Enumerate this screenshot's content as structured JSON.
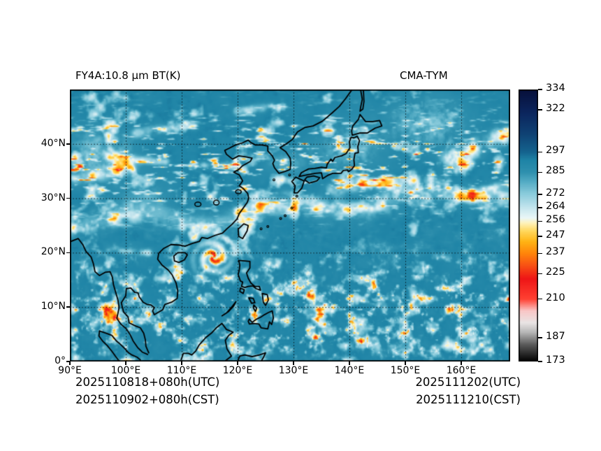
{
  "titles": {
    "left": "FY4A:10.8 μm BT(K)",
    "right": "CMA-TYM"
  },
  "map": {
    "lon_min": 90,
    "lon_max": 168.75,
    "lat_min": 0,
    "lat_max": 50,
    "x_tick_values": [
      90,
      100,
      110,
      120,
      130,
      140,
      150,
      160
    ],
    "x_tick_labels": [
      "90°E",
      "100°E",
      "110°E",
      "120°E",
      "130°E",
      "140°E",
      "150°E",
      "160°E"
    ],
    "y_tick_values": [
      0,
      10,
      20,
      30,
      40
    ],
    "y_tick_labels": [
      "0°",
      "10°N",
      "20°N",
      "30°N",
      "40°N"
    ],
    "grid_style": "dotted"
  },
  "colorbar": {
    "min": 173,
    "max": 334,
    "tick_values": [
      334,
      322,
      297,
      285,
      272,
      264,
      256,
      247,
      237,
      225,
      210,
      187,
      173
    ],
    "stops": [
      {
        "v": 173,
        "c": "#000000"
      },
      {
        "v": 183,
        "c": "#5a5a5a"
      },
      {
        "v": 190,
        "c": "#b4b4b4"
      },
      {
        "v": 196,
        "c": "#e9e4e4"
      },
      {
        "v": 203,
        "c": "#f9c6c6"
      },
      {
        "v": 210,
        "c": "#ff4032"
      },
      {
        "v": 222,
        "c": "#ee1616"
      },
      {
        "v": 230,
        "c": "#f85214"
      },
      {
        "v": 237,
        "c": "#ff850a"
      },
      {
        "v": 244,
        "c": "#ffb414"
      },
      {
        "v": 250,
        "c": "#ffd75a"
      },
      {
        "v": 255,
        "c": "#fff3bc"
      },
      {
        "v": 258,
        "c": "#eaf7f7"
      },
      {
        "v": 264,
        "c": "#c4e5ee"
      },
      {
        "v": 272,
        "c": "#8bccdc"
      },
      {
        "v": 280,
        "c": "#4fa9c2"
      },
      {
        "v": 285,
        "c": "#2f90ae"
      },
      {
        "v": 292,
        "c": "#1f84a6"
      },
      {
        "v": 297,
        "c": "#14638e"
      },
      {
        "v": 308,
        "c": "#0f4173"
      },
      {
        "v": 320,
        "c": "#0b265e"
      },
      {
        "v": 334,
        "c": "#070f3a"
      }
    ]
  },
  "footer": {
    "left_line1": "2025110818+080h(UTC)",
    "left_line2": "2025110902+080h(CST)",
    "right_line1": "2025111202(UTC)",
    "right_line2": "2025111210(CST)"
  },
  "colors": {
    "background": "#ffffff",
    "coastline": "#000000",
    "grid": "#000000"
  }
}
